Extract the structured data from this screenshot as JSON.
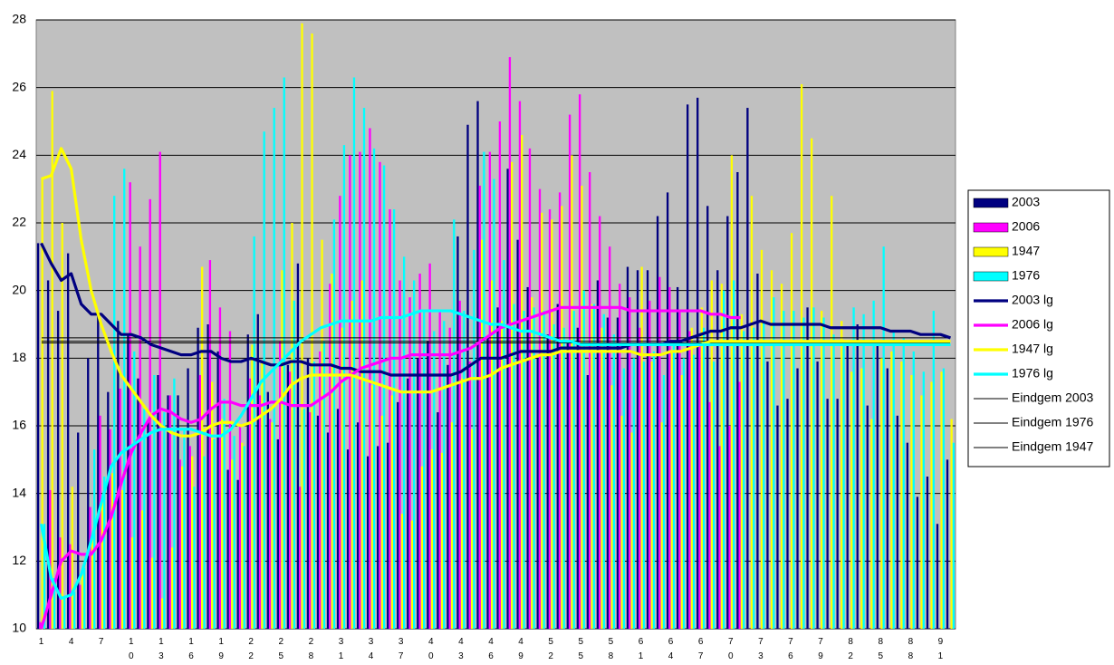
{
  "chart_data": {
    "type": "bar",
    "categories": [
      "1",
      null,
      null,
      "4",
      null,
      null,
      "7",
      null,
      null,
      "10",
      null,
      null,
      "13",
      null,
      null,
      "16",
      null,
      null,
      "19",
      null,
      null,
      "22",
      null,
      null,
      "25",
      null,
      null,
      "28",
      null,
      null,
      "31",
      null,
      null,
      "34",
      null,
      null,
      "37",
      null,
      null,
      "40",
      null,
      null,
      "43",
      null,
      null,
      "46",
      null,
      null,
      "49",
      null,
      null,
      "52",
      null,
      null,
      "55",
      null,
      null,
      "58",
      null,
      null,
      "61",
      null,
      null,
      "64",
      null,
      null,
      "67",
      null,
      null,
      "70",
      null,
      null,
      "73",
      null,
      null,
      "76",
      null,
      null,
      "79",
      null,
      null,
      "82",
      null,
      null,
      "85",
      null,
      null,
      "88",
      null,
      null,
      "91",
      null
    ],
    "ylim": [
      10,
      28
    ],
    "yticks": [
      10,
      12,
      14,
      16,
      18,
      20,
      22,
      24,
      26,
      28
    ],
    "grid": true,
    "series": [
      {
        "name": "2003",
        "type": "bar",
        "color": "#000080",
        "values": [
          21.4,
          20.3,
          19.4,
          21.1,
          15.8,
          18.0,
          19.3,
          17.0,
          19.1,
          18.7,
          17.4,
          16.1,
          17.5,
          16.9,
          16.9,
          17.7,
          18.9,
          19.0,
          18.2,
          14.7,
          14.4,
          18.7,
          19.3,
          17.0,
          15.6,
          17.8,
          20.8,
          18.0,
          16.3,
          15.8,
          16.5,
          15.3,
          16.1,
          15.1,
          15.4,
          15.5,
          16.7,
          17.4,
          18.0,
          18.5,
          16.4,
          17.8,
          21.6,
          24.9,
          25.6,
          18.6,
          19.5,
          23.6,
          21.5,
          20.1,
          18.0,
          18.7,
          19.6,
          18.5,
          18.9,
          17.5,
          20.3,
          19.2,
          19.2,
          20.7,
          20.6,
          20.6,
          22.2,
          22.9,
          20.1,
          25.5,
          25.7,
          22.5,
          20.6,
          22.2,
          23.5,
          25.4,
          20.5,
          17.9,
          16.6,
          16.8,
          17.7,
          19.5,
          17.9,
          16.8,
          16.8,
          18.5,
          19.0,
          16.6,
          18.4,
          17.7,
          16.3,
          15.5,
          13.9,
          14.5,
          13.1,
          15.0
        ]
      },
      {
        "name": "2006",
        "type": "bar",
        "color": "#ff00ff",
        "values": [
          10.2,
          14.1,
          12.7,
          12.5,
          11.3,
          13.6,
          16.3,
          15.9,
          17.1,
          23.2,
          21.3,
          22.7,
          24.1,
          16.9,
          15.0,
          15.4,
          17.5,
          20.9,
          19.5,
          18.8,
          16.0,
          17.4,
          16.9,
          16.2,
          18.5,
          17.6,
          14.2,
          16.4,
          18.2,
          20.2,
          22.8,
          24.0,
          24.1,
          24.8,
          23.8,
          22.4,
          20.3,
          19.8,
          20.5,
          20.8,
          19.4,
          18.9,
          19.7,
          17.9,
          23.1,
          24.1,
          25.0,
          26.9,
          25.6,
          24.2,
          23.0,
          22.4,
          22.9,
          25.2,
          25.8,
          23.5,
          22.2,
          21.3,
          20.2,
          19.8,
          18.9,
          19.7,
          20.4,
          20.1,
          19.4,
          18.8,
          18.4,
          16.7,
          15.4,
          16.0,
          17.3,
          null,
          null,
          null,
          null,
          null,
          null,
          null,
          null,
          null,
          null,
          null,
          null,
          null,
          null,
          null,
          null,
          null,
          null,
          null,
          null,
          null
        ]
      },
      {
        "name": "1947",
        "type": "bar",
        "color": "#ffff00",
        "values": [
          23.3,
          25.9,
          22.0,
          14.2,
          11.6,
          12.8,
          13.9,
          14.6,
          14.1,
          12.7,
          13.5,
          12.1,
          10.9,
          12.4,
          14.8,
          15.1,
          20.7,
          17.3,
          16.2,
          15.0,
          15.5,
          18.4,
          17.9,
          16.1,
          20.6,
          22.0,
          27.9,
          27.6,
          21.5,
          20.5,
          18.9,
          19.7,
          20.3,
          17.2,
          16.3,
          16.9,
          13.4,
          13.2,
          14.8,
          15.3,
          15.2,
          16.1,
          17.4,
          15.9,
          21.5,
          20.3,
          19.1,
          23.8,
          24.6,
          19.8,
          22.3,
          22.1,
          22.5,
          24.0,
          23.1,
          19.6,
          18.9,
          17.2,
          16.3,
          15.8,
          20.7,
          17.9,
          16.1,
          18.2,
          17.5,
          18.9,
          19.5,
          20.3,
          20.2,
          24.0,
          19.3,
          22.8,
          21.2,
          20.6,
          20.2,
          21.7,
          26.1,
          24.5,
          19.4,
          22.8,
          19.1,
          17.6,
          17.7,
          16.2,
          18.0,
          18.2,
          17.9,
          17.5,
          16.9,
          17.3,
          17.6,
          16.2
        ]
      },
      {
        "name": "1976",
        "type": "bar",
        "color": "#00ffff",
        "values": [
          13.1,
          11.5,
          10.9,
          11.1,
          11.8,
          15.3,
          14.5,
          22.8,
          23.6,
          18.2,
          16.5,
          17.5,
          16.4,
          17.4,
          15.9,
          14.2,
          15.1,
          15.6,
          16.8,
          15.7,
          15.4,
          21.6,
          24.7,
          25.4,
          26.3,
          19.7,
          16.5,
          17.9,
          18.5,
          22.1,
          24.3,
          26.3,
          25.4,
          24.2,
          23.7,
          22.4,
          21.0,
          20.3,
          19.4,
          18.8,
          19.1,
          22.1,
          19.4,
          21.2,
          24.1,
          23.3,
          20.9,
          19.6,
          19.4,
          19.5,
          19.4,
          19.0,
          18.9,
          19.4,
          20.0,
          19.6,
          19.3,
          18.7,
          17.7,
          18.0,
          17.9,
          18.2,
          17.5,
          18.5,
          18.0,
          18.1,
          18.9,
          17.9,
          20.0,
          20.3,
          18.8,
          18.9,
          19.1,
          19.8,
          19.4,
          19.4,
          19.2,
          19.5,
          19.2,
          18.7,
          18.4,
          19.5,
          19.3,
          19.7,
          21.3,
          18.8,
          18.6,
          18.2,
          17.6,
          19.4,
          17.7,
          15.5
        ]
      },
      {
        "name": "2003 lg",
        "type": "line",
        "color": "#000080",
        "values": [
          21.4,
          20.8,
          20.3,
          20.5,
          19.6,
          19.3,
          19.3,
          19.0,
          18.7,
          18.7,
          18.6,
          18.4,
          18.3,
          18.2,
          18.1,
          18.1,
          18.2,
          18.2,
          18.0,
          17.9,
          17.9,
          18.0,
          17.9,
          17.8,
          17.8,
          17.9,
          17.9,
          17.8,
          17.8,
          17.8,
          17.7,
          17.7,
          17.6,
          17.6,
          17.6,
          17.5,
          17.5,
          17.5,
          17.5,
          17.5,
          17.5,
          17.5,
          17.6,
          17.8,
          18.0,
          18.0,
          18.0,
          18.1,
          18.2,
          18.2,
          18.2,
          18.2,
          18.3,
          18.3,
          18.3,
          18.3,
          18.3,
          18.3,
          18.3,
          18.4,
          18.4,
          18.4,
          18.4,
          18.5,
          18.5,
          18.6,
          18.7,
          18.8,
          18.8,
          18.9,
          18.9,
          19.0,
          19.1,
          19.0,
          19.0,
          19.0,
          19.0,
          19.0,
          19.0,
          18.9,
          18.9,
          18.9,
          18.9,
          18.9,
          18.9,
          18.8,
          18.8,
          18.8,
          18.7,
          18.7,
          18.7,
          18.6
        ]
      },
      {
        "name": "2006 lg",
        "type": "line",
        "color": "#ff00ff",
        "values": [
          10.0,
          11.0,
          12.0,
          12.3,
          12.2,
          12.2,
          12.6,
          13.3,
          14.3,
          15.2,
          15.8,
          16.3,
          16.5,
          16.4,
          16.2,
          16.1,
          16.2,
          16.5,
          16.7,
          16.7,
          16.6,
          16.6,
          16.6,
          16.7,
          16.7,
          16.6,
          16.6,
          16.6,
          16.8,
          17.0,
          17.3,
          17.5,
          17.7,
          17.8,
          17.9,
          18.0,
          18.0,
          18.1,
          18.1,
          18.1,
          18.1,
          18.1,
          18.2,
          18.3,
          18.5,
          18.7,
          18.9,
          19.0,
          19.1,
          19.2,
          19.3,
          19.4,
          19.5,
          19.5,
          19.5,
          19.5,
          19.5,
          19.5,
          19.5,
          19.4,
          19.4,
          19.4,
          19.4,
          19.4,
          19.4,
          19.4,
          19.4,
          19.3,
          19.3,
          19.2,
          19.2,
          null,
          null,
          null,
          null,
          null,
          null,
          null,
          null,
          null,
          null,
          null,
          null,
          null,
          null,
          null,
          null,
          null,
          null,
          null,
          null,
          null
        ]
      },
      {
        "name": "1947 lg",
        "type": "line",
        "color": "#ffff00",
        "values": [
          23.3,
          23.4,
          24.2,
          23.6,
          21.5,
          20.0,
          19.0,
          18.2,
          17.5,
          17.1,
          16.7,
          16.3,
          16.0,
          15.8,
          15.7,
          15.7,
          15.8,
          16.0,
          16.1,
          16.1,
          16.0,
          16.1,
          16.3,
          16.5,
          16.8,
          17.2,
          17.4,
          17.5,
          17.5,
          17.5,
          17.5,
          17.5,
          17.4,
          17.3,
          17.2,
          17.1,
          17.0,
          17.0,
          17.0,
          17.0,
          17.1,
          17.2,
          17.3,
          17.4,
          17.4,
          17.5,
          17.7,
          17.8,
          17.9,
          18.0,
          18.1,
          18.1,
          18.2,
          18.2,
          18.2,
          18.2,
          18.2,
          18.2,
          18.2,
          18.2,
          18.1,
          18.1,
          18.1,
          18.2,
          18.2,
          18.3,
          18.4,
          18.5,
          18.5,
          18.5,
          18.5,
          18.5,
          18.5,
          18.5,
          18.5,
          18.5,
          18.5,
          18.5,
          18.5,
          18.5,
          18.5,
          18.5,
          18.5,
          18.5,
          18.5,
          18.5,
          18.5,
          18.5,
          18.5,
          18.5,
          18.5,
          18.5
        ]
      },
      {
        "name": "1976 lg",
        "type": "line",
        "color": "#00ffff",
        "values": [
          13.1,
          11.5,
          10.9,
          11.0,
          11.6,
          12.6,
          13.7,
          14.8,
          15.2,
          15.4,
          15.6,
          15.8,
          15.9,
          15.9,
          15.9,
          15.9,
          15.8,
          15.7,
          15.7,
          15.9,
          16.3,
          16.8,
          17.3,
          17.6,
          17.9,
          18.2,
          18.5,
          18.7,
          18.9,
          19.0,
          19.1,
          19.1,
          19.1,
          19.1,
          19.2,
          19.2,
          19.2,
          19.3,
          19.4,
          19.4,
          19.4,
          19.4,
          19.3,
          19.2,
          19.1,
          19.0,
          19.0,
          18.9,
          18.8,
          18.8,
          18.7,
          18.6,
          18.5,
          18.5,
          18.4,
          18.4,
          18.4,
          18.4,
          18.4,
          18.4,
          18.4,
          18.4,
          18.4,
          18.4,
          18.4,
          18.4,
          18.4,
          18.4,
          18.4,
          18.4,
          18.4,
          18.4,
          18.4,
          18.4,
          18.4,
          18.4,
          18.4,
          18.4,
          18.4,
          18.4,
          18.4,
          18.4,
          18.4,
          18.4,
          18.4,
          18.4,
          18.4,
          18.4,
          18.4,
          18.4,
          18.4,
          18.4
        ]
      }
    ],
    "reference_lines": [
      {
        "name": "Eindgem 2003",
        "value": 18.6,
        "color": "#000000"
      },
      {
        "name": "Eindgem 1976",
        "value": 18.5,
        "color": "#000000"
      },
      {
        "name": "Eindgem 1947",
        "value": 18.45,
        "color": "#000000"
      }
    ]
  }
}
